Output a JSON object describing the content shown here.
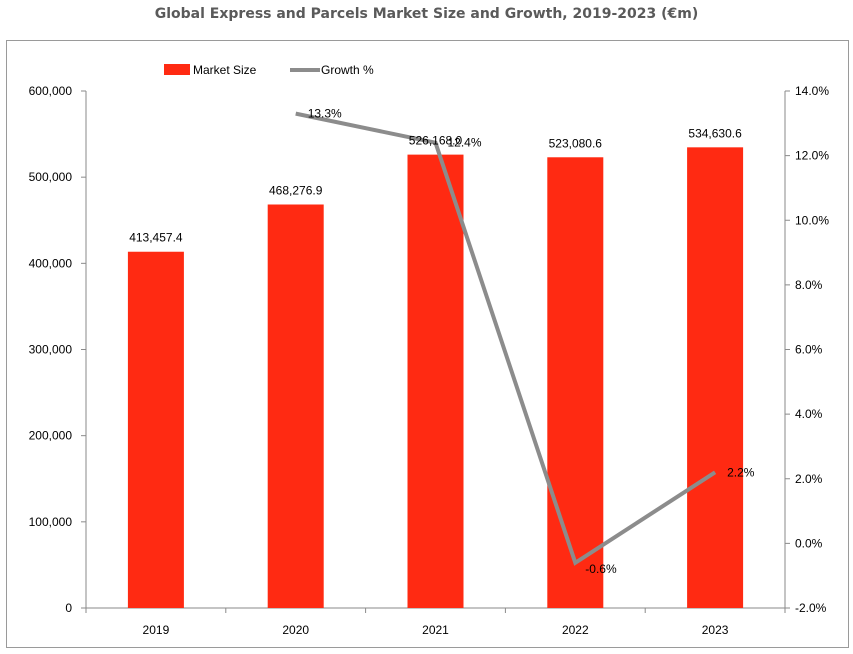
{
  "chart_data": {
    "type": "bar",
    "title": "Global Express and Parcels Market Size and Growth, 2019-2023 (€m)",
    "categories": [
      "2019",
      "2020",
      "2021",
      "2022",
      "2023"
    ],
    "series": [
      {
        "name": "Market Size",
        "type": "bar",
        "axis": "left",
        "color": "#ff2a12",
        "values": [
          413457.4,
          468276.9,
          526168.0,
          523080.6,
          534630.6
        ],
        "labels": [
          "413,457.4",
          "468,276.9",
          "526,168.0",
          "523,080.6",
          "534,630.6"
        ]
      },
      {
        "name": "Growth %",
        "type": "line",
        "axis": "right",
        "color": "#8c8c8c",
        "values": [
          null,
          13.3,
          12.4,
          -0.6,
          2.2
        ],
        "labels": [
          "",
          "13.3%",
          "12.4%",
          "-0.6%",
          "2.2%"
        ]
      }
    ],
    "y_left": {
      "min": 0,
      "max": 600000,
      "ticks": [
        0,
        100000,
        200000,
        300000,
        400000,
        500000,
        600000
      ],
      "tick_labels": [
        "0",
        "100,000",
        "200,000",
        "300,000",
        "400,000",
        "500,000",
        "600,000"
      ]
    },
    "y_right": {
      "min": -2,
      "max": 14,
      "ticks": [
        -2,
        0,
        2,
        4,
        6,
        8,
        10,
        12,
        14
      ],
      "tick_labels": [
        "-2.0%",
        "0.0%",
        "2.0%",
        "4.0%",
        "6.0%",
        "8.0%",
        "10.0%",
        "12.0%",
        "14.0%"
      ]
    },
    "grid": false,
    "legend_position": "top-left"
  }
}
